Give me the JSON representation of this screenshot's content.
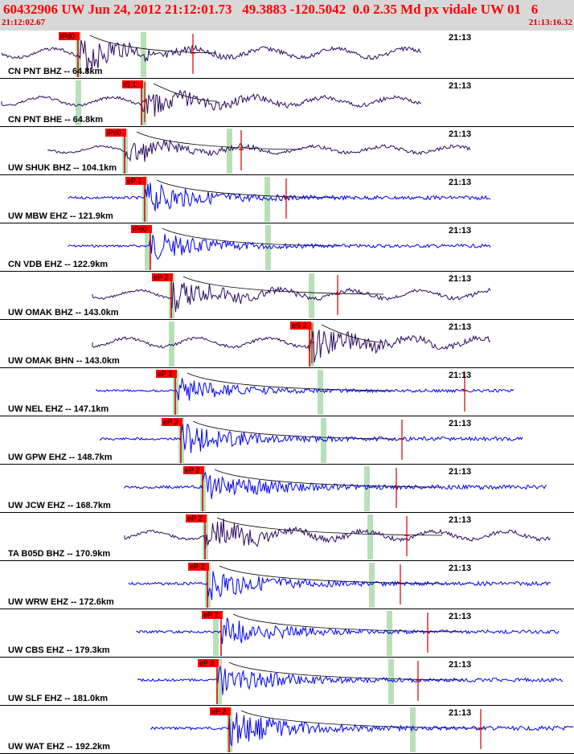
{
  "header": {
    "title": "60432906 UW Jun 24, 2012 21:12:01.73   49.3883 -120.5042  0.0 2.35 Md px vidale UW 01   6",
    "time_start": "21:12:02.67",
    "time_end": "21:13:16.32"
  },
  "colors": {
    "blue_trace": "#0000ee",
    "purple_trace": "#2a0a5e",
    "pick_box": "#ff0000",
    "window_band": "#b8e0b8",
    "header_bg": "#d8d8d8"
  },
  "traces": [
    {
      "label": "CN PNT BHZ -- 64.8km",
      "pick": "iPd0",
      "time_mark": "21:13",
      "color": "purple"
    },
    {
      "label": "CN PNT BHE -- 64.8km",
      "pick": "iS 1",
      "time_mark": "21:13",
      "color": "purple"
    },
    {
      "label": "UW SHUK BHZ -- 104.1km",
      "pick": "iPc0",
      "time_mark": "21:13",
      "color": "purple"
    },
    {
      "label": "UW MBW EHZ -- 121.9km",
      "pick": "eP 1",
      "time_mark": "21:13",
      "color": "blue"
    },
    {
      "label": "CN VDB EHZ -- 122.9km",
      "pick": "iPd0",
      "time_mark": "21:13",
      "color": "blue"
    },
    {
      "label": "UW OMAK BHZ -- 143.0km",
      "pick": "eP 2",
      "time_mark": "21:13",
      "color": "purple"
    },
    {
      "label": "UW OMAK BHN -- 143.0km",
      "pick": "eS 2",
      "time_mark": "21:13",
      "color": "purple"
    },
    {
      "label": "UW NEL EHZ -- 147.1km",
      "pick": "eP 2",
      "time_mark": "21:13",
      "color": "blue"
    },
    {
      "label": "UW GPW EHZ -- 148.7km",
      "pick": "eP 2",
      "time_mark": "21:13",
      "color": "blue"
    },
    {
      "label": "UW JCW EHZ -- 168.7km",
      "pick": "eP 2",
      "time_mark": "21:13",
      "color": "blue"
    },
    {
      "label": "TA B05D BHZ -- 170.9km",
      "pick": "eP 2",
      "time_mark": "21:13",
      "color": "purple"
    },
    {
      "label": "UW WRW EHZ -- 172.6km",
      "pick": "eP 2",
      "time_mark": "21:13",
      "color": "blue"
    },
    {
      "label": "UW CBS EHZ -- 179.3km",
      "pick": "eP 2",
      "time_mark": "21:13",
      "color": "blue"
    },
    {
      "label": "UW SLF EHZ -- 181.0km",
      "pick": "eP 2",
      "time_mark": "21:13",
      "color": "blue"
    },
    {
      "label": "UW WAT EHZ -- 192.2km",
      "pick": "eP 2",
      "time_mark": "21:13",
      "color": "blue"
    }
  ]
}
